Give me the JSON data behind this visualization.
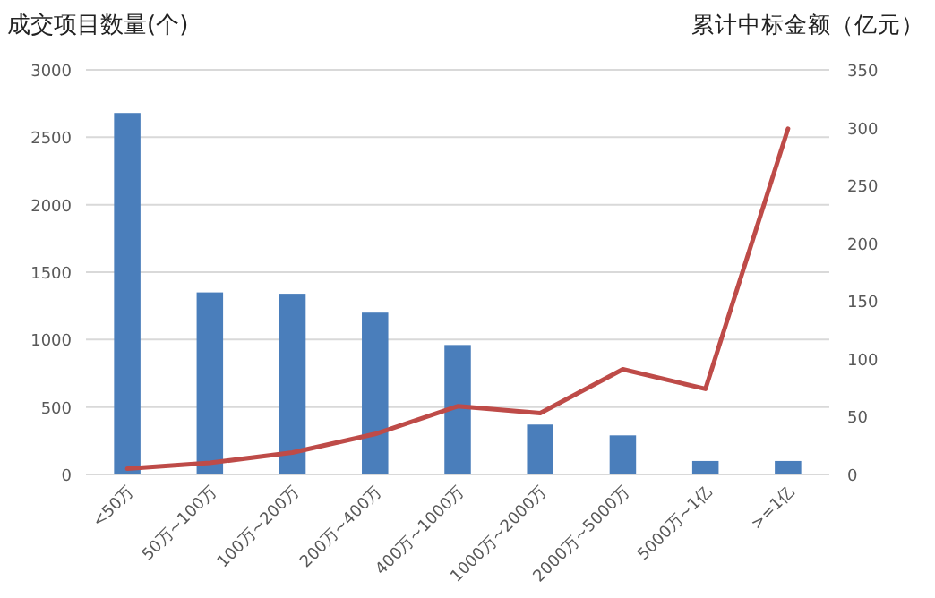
{
  "chart_data": {
    "type": "bar",
    "ylabel": "成交项目数量(个)",
    "y2label": "累计中标金额（亿元）",
    "categories": [
      "<50万",
      "50万~100万",
      "100万~200万",
      "200万~400万",
      "400万~1000万",
      "1000万~2000万",
      "2000万~5000万",
      "5000万~1亿",
      ">=1亿"
    ],
    "series": [
      {
        "color": "#4a7ebb",
        "values": [
          2680,
          1350,
          1340,
          1200,
          960,
          370,
          290,
          100,
          100
        ]
      },
      {
        "type": "line",
        "axis": "y2",
        "color": "#be4b48",
        "values": [
          5,
          10,
          19,
          35,
          59,
          53,
          91,
          74,
          299
        ]
      }
    ],
    "ylim": [
      0,
      3000
    ],
    "yticks": [
      0,
      500,
      1000,
      1500,
      2000,
      2500,
      3000
    ],
    "y2lim": [
      0,
      350
    ],
    "y2ticks": [
      0,
      50,
      100,
      150,
      200,
      250,
      300,
      350
    ],
    "grid": "y"
  }
}
